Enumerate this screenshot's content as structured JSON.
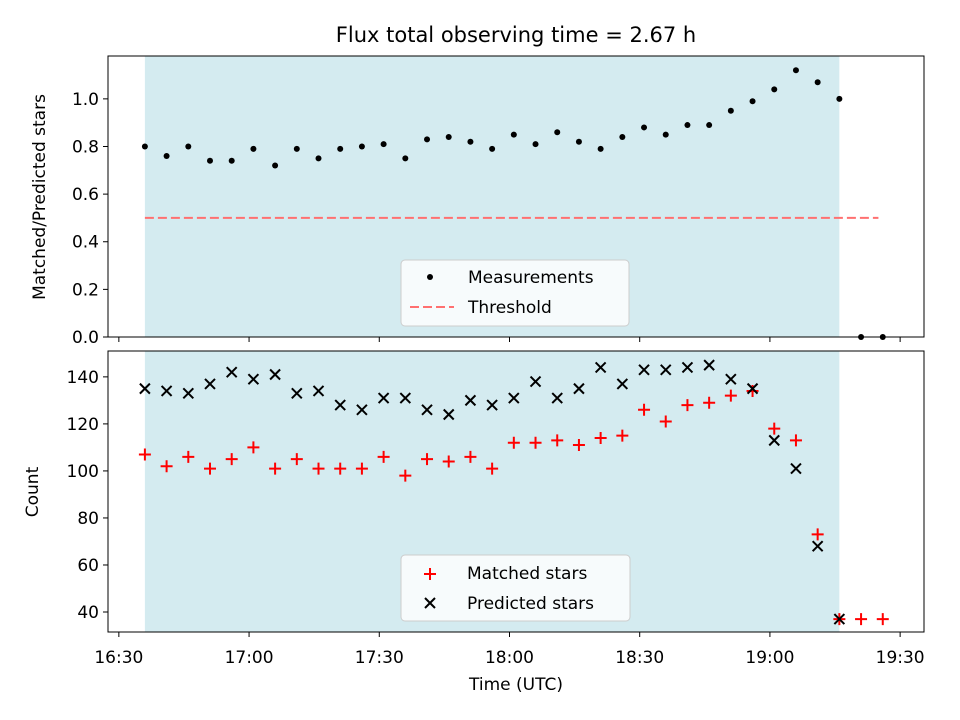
{
  "chart_data": {
    "type": "scatter",
    "title": "Flux total observing time = 2.67 h",
    "xlabel": "Time (UTC)",
    "x_tick_labels": [
      "16:30",
      "17:00",
      "17:30",
      "18:00",
      "18:30",
      "19:00",
      "19:30"
    ],
    "x_tick_values_min": [
      990,
      1020,
      1050,
      1080,
      1110,
      1140,
      1170
    ],
    "xlim_min": [
      987.5,
      1175.5
    ],
    "shaded_span_min": [
      996,
      1156
    ],
    "shade_color": "#d4ebf0",
    "x_minutes": [
      996,
      1001,
      1006,
      1011,
      1016,
      1021,
      1026,
      1031,
      1036,
      1041,
      1046,
      1051,
      1056,
      1061,
      1066,
      1071,
      1076,
      1081,
      1086,
      1091,
      1096,
      1101,
      1106,
      1111,
      1116,
      1121,
      1126,
      1131,
      1136,
      1141,
      1146,
      1151,
      1156,
      1161,
      1166
    ],
    "panels": [
      {
        "ylabel": "Matched/Predicted stars",
        "ylim": [
          0,
          1.18
        ],
        "yticks": [
          0.0,
          0.2,
          0.4,
          0.6,
          0.8,
          1.0
        ],
        "ytick_labels": [
          "0.0",
          "0.2",
          "0.4",
          "0.6",
          "0.8",
          "1.0"
        ],
        "legend_position": "bottom-center",
        "series": [
          {
            "name": "Measurements",
            "marker": "dot",
            "color": "#000000",
            "values": [
              0.8,
              0.76,
              0.8,
              0.74,
              0.74,
              0.79,
              0.72,
              0.79,
              0.75,
              0.79,
              0.8,
              0.81,
              0.75,
              0.83,
              0.84,
              0.82,
              0.79,
              0.85,
              0.81,
              0.86,
              0.82,
              0.79,
              0.84,
              0.88,
              0.85,
              0.89,
              0.89,
              0.95,
              0.99,
              1.04,
              1.12,
              1.07,
              1.0,
              0.0,
              0.0
            ]
          },
          {
            "name": "Threshold",
            "marker": "dashed-line",
            "color": "#ff7070",
            "x_range_min": [
              996,
              1165
            ],
            "value": 0.5
          }
        ]
      },
      {
        "ylabel": "Count",
        "ylim": [
          31.5,
          151
        ],
        "yticks": [
          40,
          60,
          80,
          100,
          120,
          140
        ],
        "ytick_labels": [
          "40",
          "60",
          "80",
          "100",
          "120",
          "140"
        ],
        "legend_position": "bottom-center",
        "series": [
          {
            "name": "Matched stars",
            "marker": "plus",
            "color": "#ff0000",
            "values": [
              107,
              102,
              106,
              101,
              105,
              110,
              101,
              105,
              101,
              101,
              101,
              106,
              98,
              105,
              104,
              106,
              101,
              112,
              112,
              113,
              111,
              114,
              115,
              126,
              121,
              128,
              129,
              132,
              134,
              118,
              113,
              73,
              37,
              37,
              37
            ]
          },
          {
            "name": "Predicted stars",
            "marker": "x",
            "color": "#000000",
            "values": [
              135,
              134,
              133,
              137,
              142,
              139,
              141,
              133,
              134,
              128,
              126,
              131,
              131,
              126,
              124,
              130,
              128,
              131,
              138,
              131,
              135,
              144,
              137,
              143,
              143,
              144,
              145,
              139,
              135,
              113,
              101,
              68,
              37,
              null,
              null
            ]
          }
        ]
      }
    ]
  }
}
